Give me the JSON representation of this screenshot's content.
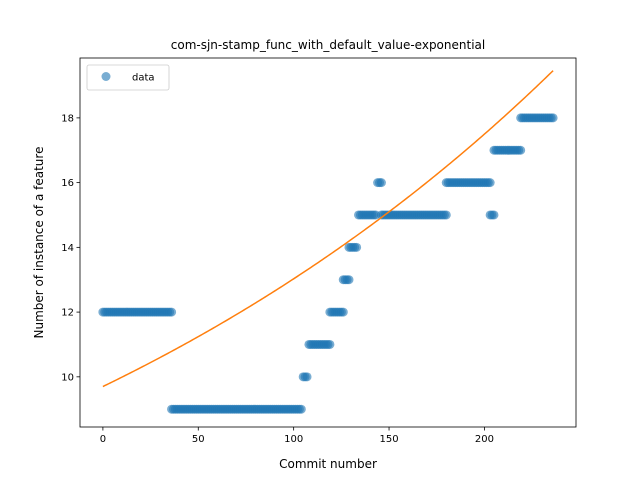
{
  "chart_data": {
    "type": "scatter",
    "title": "com-sjn-stamp_func_with_default_value-exponential",
    "xlabel": "Commit number",
    "ylabel": "Number of instance of a feature",
    "xlim": [
      -12,
      248
    ],
    "ylim": [
      8.45,
      19.85
    ],
    "xticks": [
      0,
      50,
      100,
      150,
      200
    ],
    "yticks": [
      10,
      12,
      14,
      16,
      18
    ],
    "grid": false,
    "legend": {
      "placement": "upper-left",
      "entries": [
        "data"
      ]
    },
    "colors": {
      "data": "#1f77b4",
      "fit": "#ff7f0e"
    },
    "series": [
      {
        "name": "data",
        "kind": "points",
        "segments": [
          {
            "x_start": 0,
            "x_end": 36,
            "y": 12
          },
          {
            "x_start": 36,
            "x_end": 104,
            "y": 9
          },
          {
            "x_start": 105,
            "x_end": 107,
            "y": 10
          },
          {
            "x_start": 108,
            "x_end": 119,
            "y": 11
          },
          {
            "x_start": 119,
            "x_end": 126,
            "y": 12
          },
          {
            "x_start": 126,
            "x_end": 129,
            "y": 13
          },
          {
            "x_start": 129,
            "x_end": 133,
            "y": 14
          },
          {
            "x_start": 134,
            "x_end": 143,
            "y": 15
          },
          {
            "x_start": 144,
            "x_end": 146,
            "y": 16
          },
          {
            "x_start": 146,
            "x_end": 180,
            "y": 15
          },
          {
            "x_start": 180,
            "x_end": 203,
            "y": 16
          },
          {
            "x_start": 203,
            "x_end": 205,
            "y": 15
          },
          {
            "x_start": 205,
            "x_end": 219,
            "y": 17
          },
          {
            "x_start": 219,
            "x_end": 236,
            "y": 18
          }
        ]
      },
      {
        "kind": "exponential-fit",
        "x_range": [
          0,
          236
        ],
        "a": 9.7,
        "b": 0.00295
      }
    ]
  }
}
